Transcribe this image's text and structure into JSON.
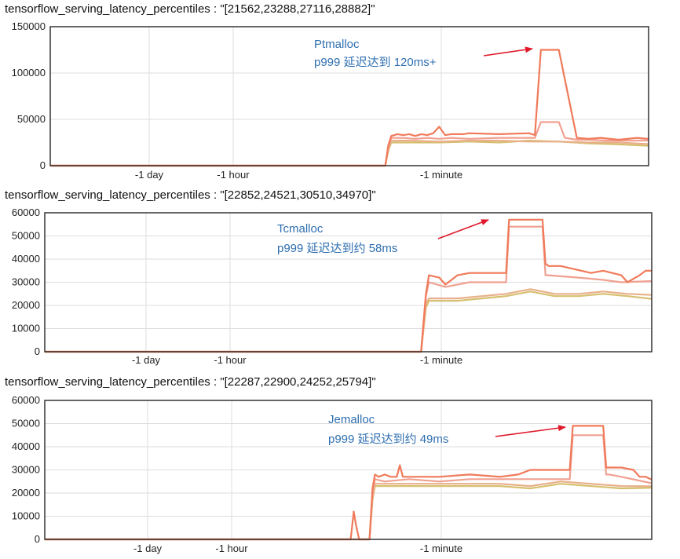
{
  "chart_data": [
    {
      "type": "line",
      "title": "tensorflow_serving_latency_percentiles : \"[21562,23288,27116,28882]\"",
      "ylim": [
        0,
        150000
      ],
      "yticks": [
        "150000",
        "100000",
        "50000",
        "0"
      ],
      "ytick_values": [
        150000,
        100000,
        50000,
        0
      ],
      "xticks": [
        "-1 day",
        "-1 hour",
        "-1 minute"
      ],
      "grid": true,
      "annotation": {
        "line1": "Ptmalloc",
        "line2": "p999 延迟达到 120ms+"
      },
      "colors": [
        "#f07a5a",
        "#f0a090",
        "#e8b08a",
        "#d6c070"
      ],
      "series": [
        {
          "x": [
            0,
            56,
            56.5,
            57,
            58,
            59,
            60,
            61,
            62,
            63,
            64,
            65,
            66,
            67,
            69,
            70,
            75,
            80,
            81,
            82,
            83,
            84,
            85,
            88,
            90,
            92,
            95,
            98,
            100
          ],
          "values": [
            0,
            0,
            22000,
            32000,
            34000,
            33000,
            34000,
            32000,
            34000,
            33000,
            35000,
            42000,
            33000,
            34000,
            34000,
            35000,
            34000,
            35000,
            33000,
            125000,
            125000,
            125000,
            125000,
            30000,
            29000,
            30000,
            28000,
            30000,
            28882
          ]
        },
        {
          "x": [
            0,
            56,
            56.5,
            57,
            59,
            61,
            63,
            65,
            67,
            70,
            75,
            80,
            81,
            82,
            85,
            86,
            88,
            90,
            93,
            96,
            100
          ],
          "values": [
            0,
            0,
            20000,
            30000,
            30000,
            29000,
            30000,
            29000,
            30000,
            29000,
            30000,
            30000,
            30000,
            47000,
            47000,
            30000,
            28000,
            28000,
            27000,
            27000,
            27116
          ]
        },
        {
          "x": [
            0,
            56,
            56.5,
            57,
            60,
            65,
            70,
            75,
            80,
            85,
            90,
            95,
            100
          ],
          "values": [
            0,
            0,
            18000,
            27000,
            27000,
            26000,
            27000,
            27000,
            26000,
            26000,
            25000,
            25000,
            23288
          ]
        },
        {
          "x": [
            0,
            56,
            56.5,
            57,
            60,
            65,
            70,
            75,
            80,
            85,
            90,
            95,
            100
          ],
          "values": [
            0,
            0,
            16000,
            25000,
            25000,
            25000,
            26000,
            25000,
            27000,
            26000,
            24000,
            23000,
            21562
          ]
        }
      ]
    },
    {
      "type": "line",
      "title": "tensorflow_serving_latency_percentiles : \"[22852,24521,30510,34970]\"",
      "ylim": [
        0,
        60000
      ],
      "yticks": [
        "60000",
        "50000",
        "40000",
        "30000",
        "20000",
        "10000",
        "0"
      ],
      "ytick_values": [
        60000,
        50000,
        40000,
        30000,
        20000,
        10000,
        0
      ],
      "xticks": [
        "-1 day",
        "-1 hour",
        "-1 minute"
      ],
      "grid": true,
      "annotation": {
        "line1": "Tcmalloc",
        "line2": "p999 延迟达到约 58ms"
      },
      "colors": [
        "#f07a5a",
        "#f0a090",
        "#e8b08a",
        "#d6c070"
      ],
      "series": [
        {
          "x": [
            0,
            62,
            62.8,
            63.3,
            65,
            66,
            68,
            70,
            74,
            76,
            76.5,
            77,
            80,
            82,
            82.5,
            83,
            85,
            90,
            92,
            95,
            96,
            98,
            99,
            100
          ],
          "values": [
            0,
            0,
            25000,
            33000,
            32000,
            29000,
            33000,
            34000,
            34000,
            34000,
            57000,
            57000,
            57000,
            57000,
            38000,
            37000,
            37000,
            34000,
            35000,
            33000,
            30000,
            33000,
            35000,
            34970
          ]
        },
        {
          "x": [
            0,
            62,
            62.8,
            63.3,
            66,
            70,
            74,
            76,
            76.5,
            77,
            80,
            82,
            82.5,
            83,
            88,
            92,
            95,
            100
          ],
          "values": [
            0,
            0,
            24000,
            30000,
            28000,
            30000,
            30000,
            30000,
            54000,
            54000,
            54000,
            54000,
            33000,
            33000,
            32000,
            31000,
            30000,
            30510
          ]
        },
        {
          "x": [
            0,
            62,
            62.8,
            63.3,
            68,
            72,
            76,
            80,
            84,
            88,
            92,
            96,
            100
          ],
          "values": [
            0,
            0,
            21000,
            23000,
            23000,
            24000,
            25000,
            27000,
            25000,
            25000,
            26000,
            25000,
            24521
          ]
        },
        {
          "x": [
            0,
            62,
            62.8,
            63.3,
            68,
            72,
            76,
            80,
            84,
            88,
            92,
            96,
            100
          ],
          "values": [
            0,
            0,
            19000,
            22000,
            22000,
            23000,
            24000,
            26000,
            24000,
            24000,
            25000,
            24000,
            22852
          ]
        }
      ]
    },
    {
      "type": "line",
      "title": "tensorflow_serving_latency_percentiles : \"[22287,22900,24252,25794]\"",
      "ylim": [
        0,
        60000
      ],
      "yticks": [
        "60000",
        "50000",
        "40000",
        "30000",
        "20000",
        "10000",
        "0"
      ],
      "ytick_values": [
        60000,
        50000,
        40000,
        30000,
        20000,
        10000,
        0
      ],
      "xticks": [
        "-1 day",
        "-1 hour",
        "-1 minute"
      ],
      "grid": true,
      "annotation": {
        "line1": "Jemalloc",
        "line2": "p999 延迟达到约 49ms"
      },
      "colors": [
        "#f07a5a",
        "#f0a090",
        "#e8b08a",
        "#d6c070"
      ],
      "series": [
        {
          "x": [
            0,
            50.4,
            50.9,
            51.3,
            51.8,
            53.5,
            54,
            54.4,
            55,
            56,
            57,
            58,
            58.5,
            59,
            60,
            65,
            70,
            75,
            78,
            80,
            85,
            86.5,
            87,
            88,
            90,
            92,
            92.5,
            93,
            95,
            97,
            98,
            99,
            100
          ],
          "values": [
            0,
            0,
            12000,
            6000,
            0,
            0,
            22000,
            28000,
            27000,
            28000,
            27000,
            27000,
            32000,
            27000,
            27000,
            27000,
            28000,
            27000,
            28000,
            30000,
            30000,
            30000,
            49000,
            49000,
            49000,
            49000,
            31000,
            31000,
            31000,
            30000,
            27000,
            27000,
            25794
          ]
        },
        {
          "x": [
            0,
            53.5,
            54,
            54.4,
            56,
            60,
            65,
            70,
            75,
            80,
            85,
            86.5,
            87,
            88,
            91,
            92,
            92.5,
            93,
            95,
            100
          ],
          "values": [
            0,
            0,
            20000,
            26000,
            25000,
            26000,
            25000,
            26000,
            26000,
            26000,
            26000,
            26000,
            45000,
            45000,
            45000,
            45000,
            28000,
            28000,
            27000,
            24252
          ]
        },
        {
          "x": [
            0,
            53.5,
            54,
            54.4,
            60,
            65,
            70,
            75,
            80,
            85,
            90,
            95,
            100
          ],
          "values": [
            0,
            0,
            18000,
            24000,
            24000,
            24000,
            24000,
            24000,
            23000,
            25000,
            24000,
            23000,
            22900
          ]
        },
        {
          "x": [
            0,
            53.5,
            54,
            54.4,
            60,
            65,
            70,
            75,
            80,
            85,
            90,
            95,
            100
          ],
          "values": [
            0,
            0,
            17000,
            23000,
            23000,
            23000,
            23000,
            23000,
            22000,
            24000,
            23000,
            22000,
            22287
          ]
        }
      ]
    }
  ]
}
